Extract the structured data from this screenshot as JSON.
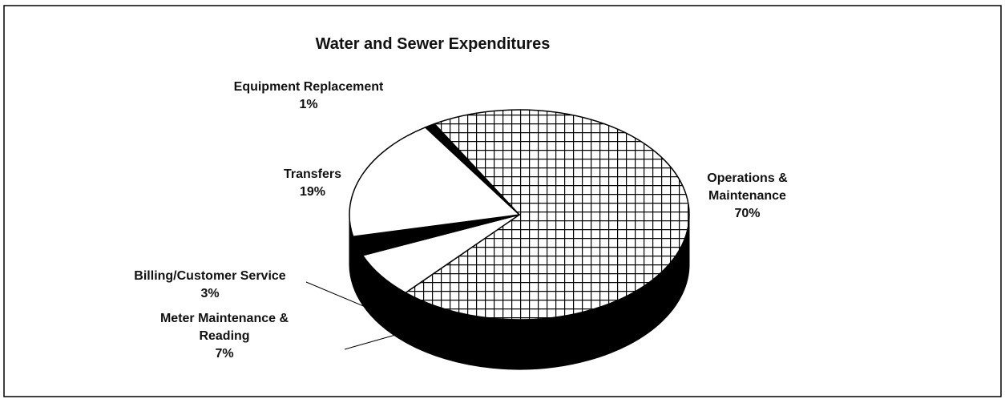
{
  "chart_data": {
    "type": "pie",
    "title": "Water and Sewer Expenditures",
    "categories": [
      "Operations & Maintenance",
      "Meter Maintenance & Reading",
      "Billing/Customer Service",
      "Transfers",
      "Equipment Replacement"
    ],
    "values": [
      70,
      7,
      3,
      19,
      1
    ],
    "value_labels": [
      "70%",
      "7%",
      "3%",
      "19%",
      "1%"
    ],
    "colors": [
      "#ffffff",
      "#ffffff",
      "#000000",
      "#ffffff",
      "#000000"
    ],
    "hatch": [
      true,
      false,
      false,
      false,
      false
    ],
    "three_d": true
  }
}
